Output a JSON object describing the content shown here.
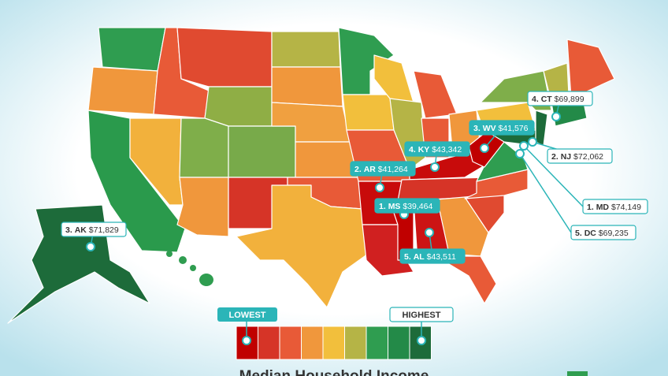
{
  "callouts": [
    {
      "rank": "3.",
      "state": "AK",
      "value": "$71,829"
    },
    {
      "rank": "2.",
      "state": "AR",
      "value": "$41,264"
    },
    {
      "rank": "4.",
      "state": "KY",
      "value": "$43,342"
    },
    {
      "rank": "3.",
      "state": "WV",
      "value": "$41,576"
    },
    {
      "rank": "1.",
      "state": "MS",
      "value": "$39,464"
    },
    {
      "rank": "5.",
      "state": "AL",
      "value": "$43,511"
    },
    {
      "rank": "4.",
      "state": "CT",
      "value": "$69,899"
    },
    {
      "rank": "2.",
      "state": "NJ",
      "value": "$72,062"
    },
    {
      "rank": "1.",
      "state": "MD",
      "value": "$74,149"
    },
    {
      "rank": "5.",
      "state": "DC",
      "value": "$69,235"
    }
  ],
  "legend": {
    "low": "LOWEST",
    "high": "HIGHEST",
    "colors": [
      "#c00000",
      "#d63427",
      "#e85a37",
      "#f0973c",
      "#f2bf3c",
      "#b5b446",
      "#2f9d50",
      "#238a48",
      "#1d6b3a"
    ]
  },
  "title": "Median Household Income"
}
